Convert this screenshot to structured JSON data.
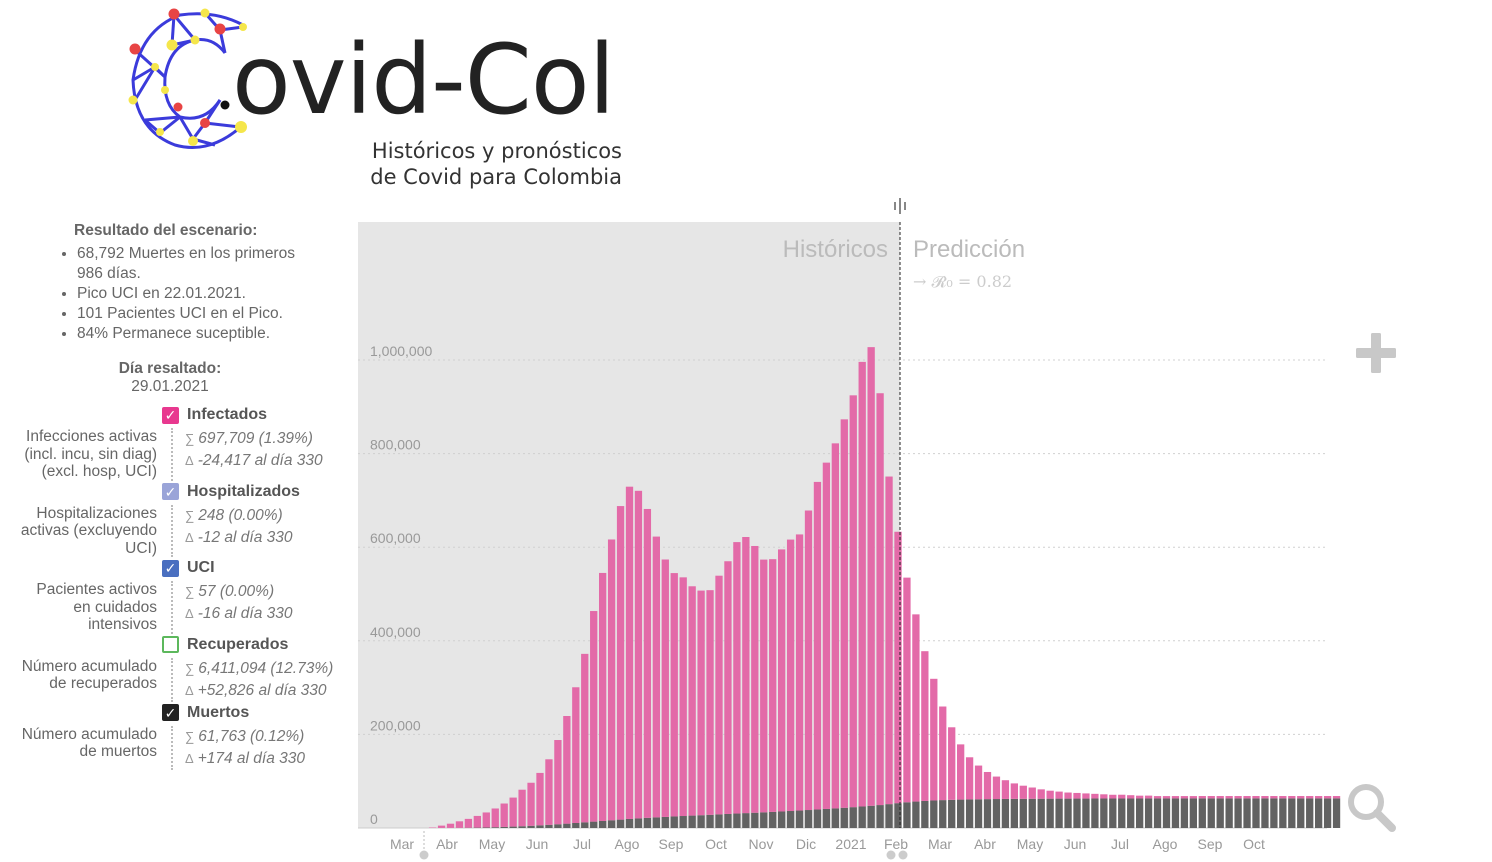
{
  "brand": {
    "name": "ovid-Col",
    "tagline_line1": "Históricos y pronósticos",
    "tagline_line2": "de Covid para Colombia"
  },
  "scenario": {
    "title": "Resultado del escenario:",
    "items": [
      "68,792 Muertes en los primeros 986 días.",
      "Pico UCI en 22.01.2021.",
      "101 Pacientes UCI en el Pico.",
      "84% Permanece suceptible."
    ]
  },
  "highlighted_day": {
    "title": "Día resaltado:",
    "date": "29.01.2021"
  },
  "categories": [
    {
      "name": "Infectados",
      "checked": true,
      "color": "#e8388f",
      "description": "Infecciones activas (incl. incu, sin diag) (excl. hosp, UCI)",
      "sum": "697,709 (1.39%)",
      "delta": "-24,417 al día 330"
    },
    {
      "name": "Hospitalizados",
      "checked": true,
      "color": "#9aa4d8",
      "description": "Hospitalizaciones activas (excluyendo UCI)",
      "sum": "248 (0.00%)",
      "delta": "-12 al día 330"
    },
    {
      "name": "UCI",
      "checked": true,
      "color": "#4a6fc0",
      "description": "Pacientes activos en cuidados intensivos",
      "sum": "57 (0.00%)",
      "delta": "-16 al día 330"
    },
    {
      "name": "Recuperados",
      "checked": false,
      "color": "#5cb85c",
      "description": "Número acumulado de recuperados",
      "sum": "6,411,094 (12.73%)",
      "delta": "+52,826 al día 330"
    },
    {
      "name": "Muertos",
      "checked": true,
      "color": "#222222",
      "description": "Número acumulado de muertos",
      "sum": "61,763 (0.12%)",
      "delta": "+174 al día 330"
    }
  ],
  "symbols": {
    "sum": "∑",
    "delta": "Δ",
    "check": "✓"
  },
  "chart_data": {
    "type": "bar",
    "stacked": true,
    "region_labels": {
      "history": "Históricos",
      "prediction": "Predicción"
    },
    "r0_label": "→ 𝓡₀ = 0.82",
    "ylim": [
      0,
      1100000
    ],
    "yticks": [
      0,
      200000,
      400000,
      600000,
      800000,
      1000000
    ],
    "ytick_labels": [
      "0",
      "200,000",
      "400,000",
      "600,000",
      "800,000",
      "1,000,000"
    ],
    "month_labels": [
      "Mar",
      "Abr",
      "May",
      "Jun",
      "Jul",
      "Ago",
      "Sep",
      "Oct",
      "Nov",
      "Dic",
      "2021",
      "Feb",
      "Mar",
      "Abr",
      "May",
      "Jun",
      "Jul",
      "Ago",
      "Sep",
      "Oct"
    ],
    "history_bar_count": 65,
    "grid": true,
    "colors": {
      "infectados": "#e36aa8",
      "muertos": "#626262",
      "history_bg": "#e6e6e6",
      "grid": "#d0d0d0"
    },
    "series": [
      {
        "name": "Infectados",
        "values": [
          0,
          1000,
          5000,
          9000,
          14000,
          19000,
          25000,
          32000,
          40000,
          50000,
          62000,
          78000,
          92000,
          112000,
          140000,
          180000,
          230000,
          290000,
          360000,
          450000,
          530000,
          600000,
          670000,
          710000,
          700000,
          660000,
          600000,
          550000,
          520000,
          510000,
          490000,
          480000,
          480000,
          510000,
          540000,
          580000,
          590000,
          570000,
          540000,
          540000,
          560000,
          580000,
          590000,
          640000,
          700000,
          740000,
          780000,
          830000,
          880000,
          950000,
          980000,
          880000,
          700000,
          580000,
          480000,
          400000,
          320000,
          260000,
          200000,
          155000,
          118000,
          90000,
          72000,
          58000,
          48000,
          40000,
          33000,
          28000,
          24000,
          20000,
          17000,
          15000,
          13000,
          12000,
          11000,
          10000,
          9000,
          8000,
          8000,
          7000,
          6000,
          6000,
          5000,
          5000,
          5000,
          5000,
          5000,
          5000,
          5000,
          5000,
          5000,
          5000,
          5000,
          5000,
          5000,
          5000,
          5000,
          5000,
          5000,
          5000,
          5000,
          5000,
          5000
        ]
      },
      {
        "name": "Muertos",
        "values": [
          0,
          0,
          100,
          200,
          300,
          500,
          800,
          1200,
          1700,
          2300,
          3000,
          3800,
          4700,
          5700,
          6800,
          8000,
          9300,
          10700,
          12100,
          13600,
          15000,
          16500,
          17900,
          19300,
          20500,
          21700,
          22700,
          23700,
          24700,
          25600,
          26500,
          27300,
          28200,
          29100,
          30000,
          30900,
          31800,
          32600,
          33500,
          34400,
          35300,
          36300,
          37300,
          38400,
          39500,
          40700,
          41900,
          43200,
          44500,
          46000,
          47500,
          49000,
          51000,
          53000,
          55000,
          56500,
          57800,
          58800,
          59600,
          60200,
          60700,
          61100,
          61400,
          61700,
          61900,
          62100,
          62300,
          62400,
          62500,
          62600,
          62700,
          62800,
          62800,
          62900,
          62900,
          63000,
          63000,
          63000,
          63100,
          63100,
          63100,
          63200,
          63200,
          63200,
          63200,
          63200,
          63200,
          63300,
          63300,
          63300,
          63300,
          63300,
          63300,
          63300,
          63300,
          63300,
          63300,
          63300,
          63300,
          63300,
          63300,
          63300,
          63300
        ]
      }
    ]
  }
}
